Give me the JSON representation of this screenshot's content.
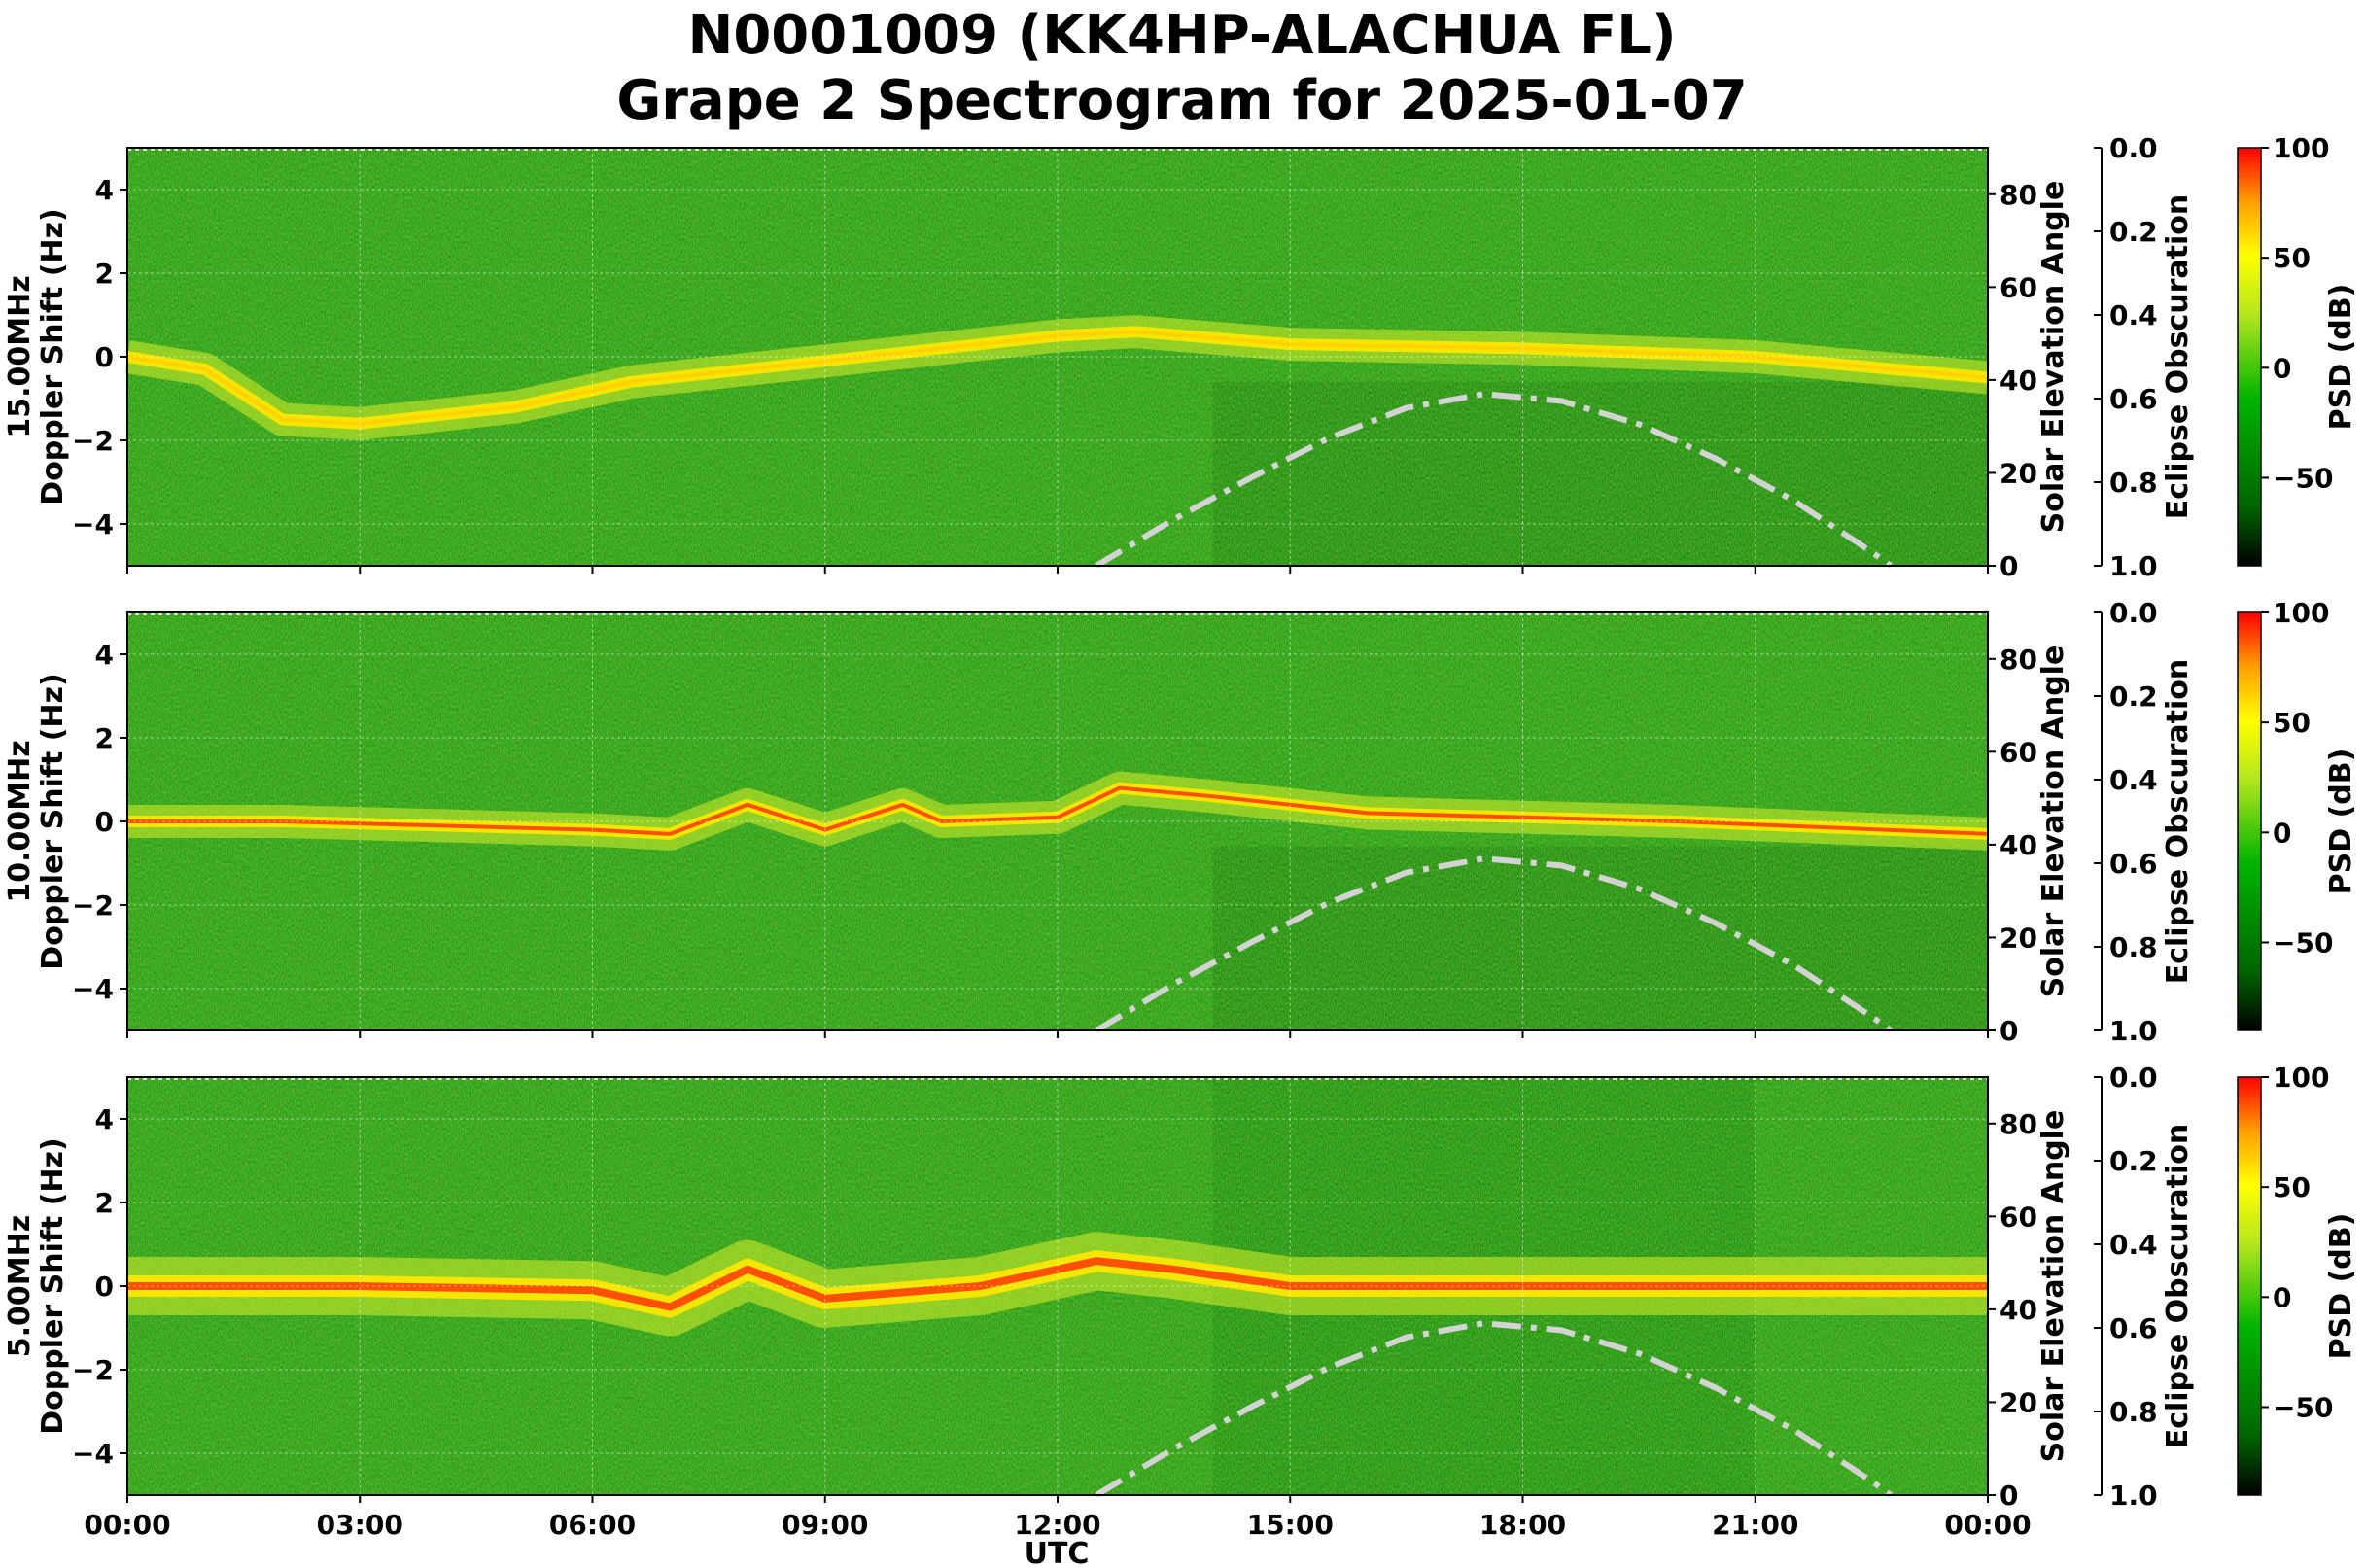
{
  "title": {
    "line1": "N0001009 (KK4HP-ALACHUA FL)",
    "line2": "Grape 2 Spectrogram for 2025-01-07"
  },
  "chart_data": {
    "type": "heatmap",
    "x_axis": {
      "label": "UTC",
      "range_hours": [
        0,
        24
      ],
      "ticks": [
        {
          "h": 0,
          "label": "00:00"
        },
        {
          "h": 3,
          "label": "03:00"
        },
        {
          "h": 6,
          "label": "06:00"
        },
        {
          "h": 9,
          "label": "09:00"
        },
        {
          "h": 12,
          "label": "12:00"
        },
        {
          "h": 15,
          "label": "15:00"
        },
        {
          "h": 18,
          "label": "18:00"
        },
        {
          "h": 21,
          "label": "21:00"
        },
        {
          "h": 24,
          "label": "00:00"
        }
      ]
    },
    "y_left": {
      "label": "Doppler Shift (Hz)",
      "range": [
        -5,
        5
      ],
      "ticks": [
        {
          "v": 4,
          "label": "4"
        },
        {
          "v": 2,
          "label": "2"
        },
        {
          "v": 0,
          "label": "0"
        },
        {
          "v": -2,
          "label": "−2"
        },
        {
          "v": -4,
          "label": "−4"
        }
      ]
    },
    "y_right": {
      "label": "Solar Elevation Angle",
      "range": [
        0,
        90
      ],
      "ticks": [
        {
          "v": 0,
          "label": "0"
        },
        {
          "v": 20,
          "label": "20"
        },
        {
          "v": 40,
          "label": "40"
        },
        {
          "v": 60,
          "label": "60"
        },
        {
          "v": 80,
          "label": "80"
        }
      ]
    },
    "eclipse_axis": {
      "label": "Eclipse Obscuration",
      "range": [
        0,
        1
      ],
      "inverted": true,
      "ticks": [
        {
          "v": 0,
          "label": "0.0"
        },
        {
          "v": 0.2,
          "label": "0.2"
        },
        {
          "v": 0.4,
          "label": "0.4"
        },
        {
          "v": 0.6,
          "label": "0.6"
        },
        {
          "v": 0.8,
          "label": "0.8"
        },
        {
          "v": 1,
          "label": "1.0"
        }
      ]
    },
    "colorbar": {
      "label": "PSD (dB)",
      "range": [
        -90,
        100
      ],
      "colors": [
        "#000000",
        "#006400",
        "#00b400",
        "#b4e61e",
        "#ffff00",
        "#ffa000",
        "#ff0000"
      ],
      "ticks": [
        {
          "v": 100,
          "label": "100"
        },
        {
          "v": 50,
          "label": "50"
        },
        {
          "v": 0,
          "label": "0"
        },
        {
          "v": -50,
          "label": "−50"
        }
      ]
    },
    "solar_elevation": {
      "style": "dash-dot",
      "color": "#d3d3d3",
      "points": [
        [
          12.5,
          0
        ],
        [
          13.5,
          10
        ],
        [
          14.5,
          19
        ],
        [
          15.5,
          27.5
        ],
        [
          16.5,
          34
        ],
        [
          17.5,
          37
        ],
        [
          18.5,
          35.5
        ],
        [
          19.5,
          30.5
        ],
        [
          20.5,
          23
        ],
        [
          21.5,
          14
        ],
        [
          22.5,
          3
        ],
        [
          22.75,
          0
        ]
      ]
    },
    "panels": [
      {
        "ylabel_freq": "15.00MHz",
        "ylabel": "Doppler Shift (Hz)",
        "dominant_trace_hz": [
          [
            0,
            0
          ],
          [
            1,
            -0.3
          ],
          [
            2,
            -1.5
          ],
          [
            3,
            -1.6
          ],
          [
            5,
            -1.2
          ],
          [
            6.5,
            -0.6
          ],
          [
            12,
            0.5
          ],
          [
            13,
            0.6
          ],
          [
            15,
            0.3
          ],
          [
            18,
            0.2
          ],
          [
            21,
            0
          ],
          [
            24,
            -0.5
          ]
        ]
      },
      {
        "ylabel_freq": "10.00MHz",
        "ylabel": "Doppler Shift (Hz)",
        "dominant_trace_hz": [
          [
            0,
            0
          ],
          [
            2,
            0
          ],
          [
            4,
            -0.1
          ],
          [
            6,
            -0.2
          ],
          [
            7,
            -0.3
          ],
          [
            8,
            0.4
          ],
          [
            9,
            -0.2
          ],
          [
            10,
            0.4
          ],
          [
            10.5,
            0
          ],
          [
            12,
            0.1
          ],
          [
            12.8,
            0.8
          ],
          [
            14,
            0.6
          ],
          [
            16,
            0.2
          ],
          [
            20,
            0
          ],
          [
            24,
            -0.3
          ]
        ]
      },
      {
        "ylabel_freq": "5.00MHz",
        "ylabel": "Doppler Shift (Hz)",
        "dominant_trace_hz": [
          [
            0,
            0
          ],
          [
            3,
            0
          ],
          [
            6,
            -0.1
          ],
          [
            7,
            -0.5
          ],
          [
            8,
            0.4
          ],
          [
            9,
            -0.3
          ],
          [
            11,
            0
          ],
          [
            12.5,
            0.6
          ],
          [
            13.5,
            0.4
          ],
          [
            15,
            0
          ],
          [
            24,
            0
          ]
        ]
      }
    ]
  }
}
